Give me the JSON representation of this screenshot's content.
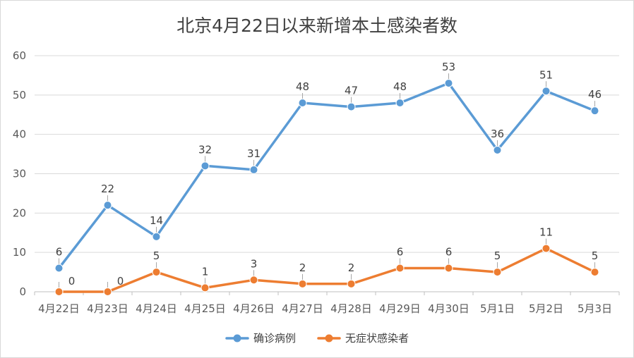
{
  "chart_data": {
    "type": "line",
    "title": "北京4月22日以来新增本土感染者数",
    "categories": [
      "4月22日",
      "4月23日",
      "4月24日",
      "4月25日",
      "4月26日",
      "4月27日",
      "4月28日",
      "4月29日",
      "4月30日",
      "5月1日",
      "5月2日",
      "5月3日"
    ],
    "series": [
      {
        "name": "确诊病例",
        "color": "#5b9bd5",
        "values": [
          6,
          22,
          14,
          32,
          31,
          48,
          47,
          48,
          53,
          36,
          51,
          46
        ]
      },
      {
        "name": "无症状感染者",
        "color": "#ed7d31",
        "values": [
          0,
          0,
          5,
          1,
          3,
          2,
          2,
          6,
          6,
          5,
          11,
          5
        ]
      }
    ],
    "ylim": [
      0,
      60
    ],
    "yticks": [
      0,
      10,
      20,
      30,
      40,
      50,
      60
    ],
    "grid": true,
    "legend_position": "bottom",
    "xlabel": "",
    "ylabel": ""
  }
}
